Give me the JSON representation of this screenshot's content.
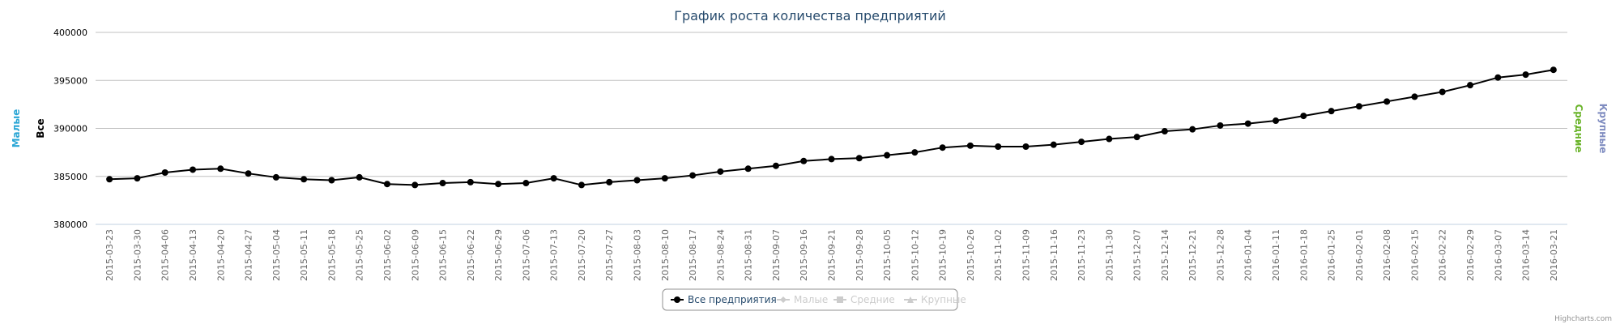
{
  "chart_data": {
    "type": "line",
    "title": "График роста количества предприятий",
    "categories": [
      "2015-03-23",
      "2015-03-30",
      "2015-04-06",
      "2015-04-13",
      "2015-04-20",
      "2015-04-27",
      "2015-05-04",
      "2015-05-11",
      "2015-05-18",
      "2015-05-25",
      "2015-06-02",
      "2015-06-09",
      "2015-06-15",
      "2015-06-22",
      "2015-06-29",
      "2015-07-06",
      "2015-07-13",
      "2015-07-20",
      "2015-07-27",
      "2015-08-03",
      "2015-08-10",
      "2015-08-17",
      "2015-08-24",
      "2015-08-31",
      "2015-09-07",
      "2015-09-16",
      "2015-09-21",
      "2015-09-28",
      "2015-10-05",
      "2015-10-12",
      "2015-10-19",
      "2015-10-26",
      "2015-11-02",
      "2015-11-09",
      "2015-11-16",
      "2015-11-23",
      "2015-11-30",
      "2015-12-07",
      "2015-12-14",
      "2015-12-21",
      "2015-12-28",
      "2016-01-04",
      "2016-01-11",
      "2016-01-18",
      "2016-01-25",
      "2016-02-01",
      "2016-02-08",
      "2016-02-15",
      "2016-02-22",
      "2016-02-29",
      "2016-03-07",
      "2016-03-14",
      "2016-03-21"
    ],
    "series": [
      {
        "name": "Все предприятия",
        "color": "#000000",
        "visible": true,
        "values": [
          384700,
          384800,
          385400,
          385700,
          385800,
          385300,
          384900,
          384700,
          384600,
          384900,
          384200,
          384100,
          384300,
          384400,
          384200,
          384300,
          384800,
          384100,
          384400,
          384600,
          384800,
          385100,
          385500,
          385800,
          386100,
          386600,
          386800,
          386900,
          387200,
          387500,
          388000,
          388200,
          388100,
          388100,
          388300,
          388600,
          388900,
          389100,
          389700,
          389900,
          390300,
          390500,
          390800,
          391300,
          391800,
          392300,
          392800,
          393300,
          393800,
          394500,
          395300,
          395600,
          396100
        ]
      },
      {
        "name": "Малые",
        "color": "#2aa6d5",
        "visible": false
      },
      {
        "name": "Средние",
        "color": "#6ab42a",
        "visible": false
      },
      {
        "name": "Крупные",
        "color": "#7f8cc0",
        "visible": false
      }
    ],
    "axis_titles": [
      {
        "text": "Малые",
        "color": "#2aa6d5",
        "side": "left"
      },
      {
        "text": "Все",
        "color": "#000000",
        "side": "left"
      },
      {
        "text": "Средние",
        "color": "#6ab42a",
        "side": "right"
      },
      {
        "text": "Крупные",
        "color": "#7f8cc0",
        "side": "right"
      }
    ],
    "ylim": [
      380000,
      400000
    ],
    "yticks": [
      380000,
      385000,
      390000,
      395000,
      400000
    ],
    "grid": true,
    "legend": "bottom",
    "credits": "Highcharts.com"
  }
}
